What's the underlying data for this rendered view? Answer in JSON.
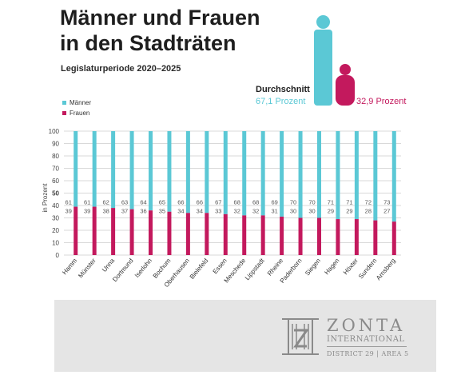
{
  "title_line1": "Männer und Frauen",
  "title_line2": "in den Stadträten",
  "subtitle": "Legislaturperiode 2020–2025",
  "average": {
    "label": "Durchschnitt",
    "male_text": "67,1 Prozent",
    "female_text": "32,9 Prozent",
    "male_value": 67.1,
    "female_value": 32.9
  },
  "legend": {
    "male": "Männer",
    "female": "Frauen"
  },
  "colors": {
    "male": "#5bc8d5",
    "female": "#c3195d",
    "title": "#1e1e1e",
    "grid": "#d9d9d9",
    "footer_bg": "#e5e5e5",
    "logo": "#8a8a8a"
  },
  "chart_data": {
    "type": "bar",
    "stacked": true,
    "categories": [
      "Hamm",
      "Münster",
      "Unna",
      "Dortmund",
      "Iserlohn",
      "Bochum",
      "Oberhausen",
      "Bielefeld",
      "Essen",
      "Meschede",
      "Lippstadt",
      "Rheine",
      "Paderborn",
      "Siegen",
      "Hagen",
      "Höxter",
      "Sundern",
      "Arnsberg"
    ],
    "series": [
      {
        "name": "Frauen",
        "values": [
          39,
          39,
          38,
          37,
          36,
          35,
          34,
          34,
          33,
          32,
          32,
          31,
          30,
          30,
          29,
          29,
          28,
          27
        ]
      },
      {
        "name": "Männer",
        "values": [
          61,
          61,
          62,
          63,
          64,
          65,
          66,
          66,
          67,
          68,
          68,
          69,
          70,
          70,
          71,
          71,
          72,
          73
        ]
      }
    ],
    "ylabel": "in Prozent",
    "ylim": [
      0,
      100
    ],
    "yticks": [
      0,
      10,
      20,
      30,
      40,
      50,
      60,
      70,
      80,
      90,
      100
    ],
    "grid": true,
    "legend_position": "top-left"
  },
  "footer": {
    "org_name": "ZONTA",
    "org_sub": "INTERNATIONAL",
    "district": "DISTRICT 29 | AREA 5"
  }
}
